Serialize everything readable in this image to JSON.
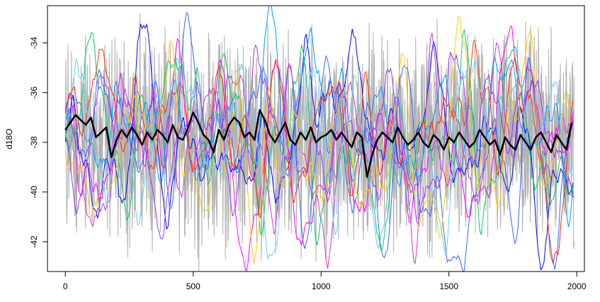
{
  "chart_data": {
    "type": "line",
    "title": "",
    "xlabel": "",
    "ylabel": "d18O",
    "xlim": [
      -70,
      2030
    ],
    "ylim": [
      -43.2,
      -32.5
    ],
    "x_ticks": [
      0,
      500,
      1000,
      1500,
      2000
    ],
    "x_tick_labels": [
      "0",
      "500",
      "1000",
      "1500",
      "2000"
    ],
    "y_ticks": [
      -34,
      -36,
      -38,
      -40,
      -42
    ],
    "y_tick_labels": [
      "-34",
      "-36",
      "-38",
      "-40",
      "-42"
    ],
    "grid": false,
    "legend": "none",
    "background_series": {
      "description_color": "#b0b0b0",
      "x_range": [
        0,
        1990
      ],
      "center": -37.9,
      "spread": 4.2
    },
    "colored_series_colors": [
      "#0000ff",
      "#3366ff",
      "#ff00ff",
      "#cc33cc",
      "#0099ff",
      "#00cc66",
      "#ff3300",
      "#ffcc00",
      "#9933ff",
      "#66ccff"
    ],
    "series": [
      {
        "name": "",
        "color": "#000000",
        "x": [
          0,
          20,
          40,
          60,
          80,
          100,
          120,
          140,
          160,
          180,
          200,
          220,
          240,
          260,
          280,
          300,
          320,
          340,
          360,
          380,
          400,
          420,
          440,
          460,
          480,
          500,
          520,
          540,
          560,
          580,
          600,
          620,
          640,
          660,
          680,
          700,
          720,
          740,
          760,
          780,
          800,
          820,
          840,
          860,
          880,
          900,
          920,
          940,
          960,
          980,
          1000,
          1020,
          1040,
          1060,
          1080,
          1100,
          1120,
          1140,
          1160,
          1180,
          1200,
          1220,
          1240,
          1260,
          1280,
          1300,
          1320,
          1340,
          1360,
          1380,
          1400,
          1420,
          1440,
          1460,
          1480,
          1500,
          1520,
          1540,
          1560,
          1580,
          1600,
          1620,
          1640,
          1660,
          1680,
          1700,
          1720,
          1740,
          1760,
          1780,
          1800,
          1820,
          1840,
          1860,
          1880,
          1900,
          1920,
          1940,
          1960,
          1980
        ],
        "values": [
          -37.5,
          -37.2,
          -36.9,
          -37.1,
          -37.3,
          -37.0,
          -37.8,
          -37.6,
          -37.4,
          -38.6,
          -37.9,
          -37.5,
          -37.8,
          -37.4,
          -37.7,
          -38.1,
          -37.6,
          -37.9,
          -37.5,
          -37.7,
          -38.0,
          -37.3,
          -37.8,
          -37.9,
          -37.4,
          -36.8,
          -37.2,
          -37.7,
          -37.9,
          -38.4,
          -37.5,
          -37.9,
          -37.3,
          -37.0,
          -37.2,
          -37.8,
          -37.6,
          -37.9,
          -36.7,
          -37.1,
          -37.7,
          -38.0,
          -37.6,
          -37.2,
          -37.9,
          -38.1,
          -37.6,
          -37.9,
          -37.4,
          -38.0,
          -37.8,
          -37.7,
          -37.5,
          -37.9,
          -37.6,
          -37.9,
          -38.2,
          -37.6,
          -37.8,
          -39.4,
          -38.5,
          -37.9,
          -37.6,
          -37.8,
          -38.0,
          -37.4,
          -37.8,
          -38.1,
          -37.9,
          -37.6,
          -38.0,
          -38.2,
          -37.7,
          -37.9,
          -38.3,
          -37.8,
          -38.0,
          -37.6,
          -37.9,
          -38.2,
          -38.0,
          -37.5,
          -37.8,
          -38.1,
          -37.9,
          -38.5,
          -37.8,
          -38.1,
          -38.3,
          -37.7,
          -38.0,
          -38.3,
          -37.8,
          -37.6,
          -38.0,
          -38.4,
          -37.7,
          -38.0,
          -38.3,
          -37.2
        ]
      }
    ]
  }
}
